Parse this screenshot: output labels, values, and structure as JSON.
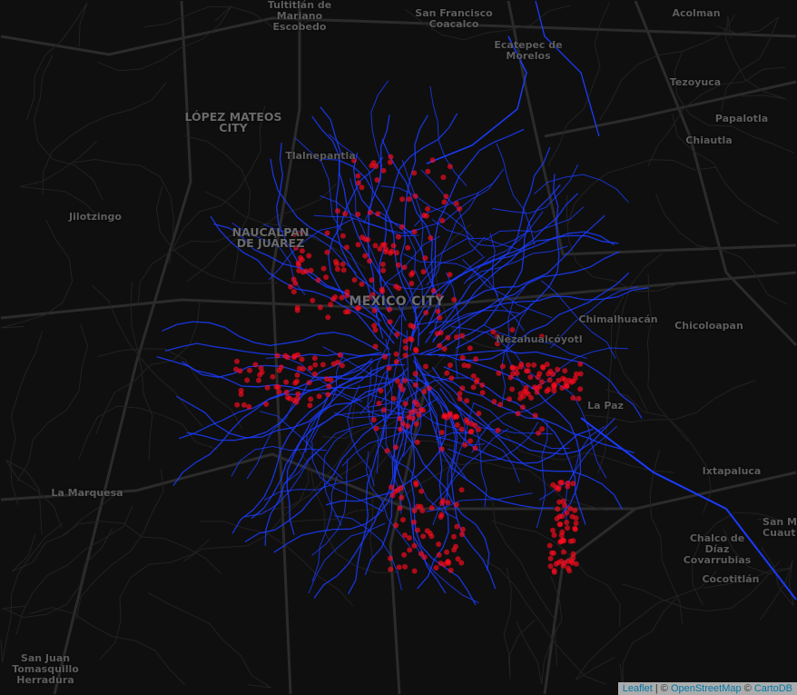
{
  "map": {
    "colors": {
      "background": "#0f0f0f",
      "roads": "#2b2b2b",
      "routes": "#1a3cff",
      "points": "#ff0a1e"
    },
    "labels": {
      "tultitlan": "Tultitlán de\nMariano\nEscobedo",
      "san_francisco": "San Francisco\nCoacalco",
      "acolman": "Acolman",
      "ecatepec": "Ecatepec de\nMorelos",
      "tezoyuca": "Tezoyuca",
      "lopez_mateos": "LÓPEZ MATEOS\nCITY",
      "papalotla": "Papalotla",
      "chiautla": "Chiautla",
      "tlalnepantla": "Tlalnepantla",
      "jilotzingo": "Jilotzingo",
      "naucalpan": "NAUCALPAN\nDE JUÁREZ",
      "mexico_city": "MEXICO CITY",
      "chimalhuacan": "Chimalhuacán",
      "chicoloapan": "Chicoloapan",
      "nezahualcoyotl": "Nezahualcóyotl",
      "la_paz": "La Paz",
      "ixtapaluca": "Ixtapaluca",
      "la_marquesa": "La Marquesa",
      "chalco": "Chalco de Díaz\nCovarrubias",
      "san_m": "San M\nCuaut",
      "cocotitlan": "Cocotitlán",
      "san_juan": "San Juan\nTomasquillo\nHerradura"
    },
    "attribution": {
      "leaflet": "Leaflet",
      "sep": " | © ",
      "osm": "OpenStreetMap",
      "sep2": " © ",
      "carto": "CartoDB"
    }
  }
}
